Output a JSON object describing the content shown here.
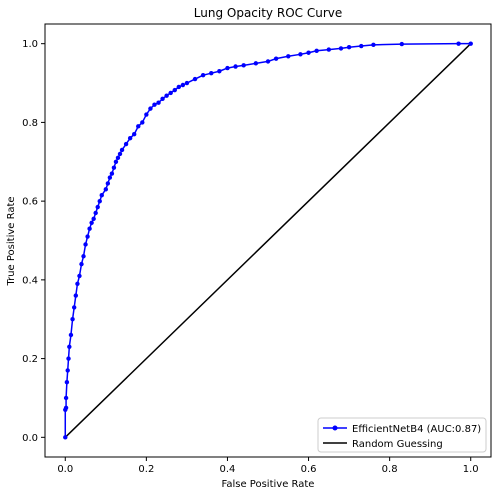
{
  "chart_data": {
    "type": "line",
    "title": "Lung Opacity ROC Curve",
    "xlabel": "False Positive Rate",
    "ylabel": "True Positive Rate",
    "xlim": [
      -0.05,
      1.05
    ],
    "ylim": [
      -0.05,
      1.05
    ],
    "xticks": [
      0.0,
      0.2,
      0.4,
      0.6,
      0.8,
      1.0
    ],
    "yticks": [
      0.0,
      0.2,
      0.4,
      0.6,
      0.8,
      1.0
    ],
    "xtick_labels": [
      "0.0",
      "0.2",
      "0.4",
      "0.6",
      "0.8",
      "1.0"
    ],
    "ytick_labels": [
      "0.0",
      "0.2",
      "0.4",
      "0.6",
      "0.8",
      "1.0"
    ],
    "grid": false,
    "legend_position": "lower-right",
    "series": [
      {
        "name": "EfficientNetB4 (AUC:0.87)",
        "color": "#0000ff",
        "marker": "dot",
        "x": [
          0.0,
          0.0,
          0.002,
          0.002,
          0.004,
          0.006,
          0.008,
          0.01,
          0.014,
          0.018,
          0.022,
          0.026,
          0.03,
          0.035,
          0.04,
          0.045,
          0.05,
          0.055,
          0.06,
          0.065,
          0.07,
          0.075,
          0.08,
          0.085,
          0.09,
          0.1,
          0.105,
          0.11,
          0.115,
          0.12,
          0.125,
          0.13,
          0.135,
          0.14,
          0.15,
          0.16,
          0.17,
          0.18,
          0.19,
          0.2,
          0.21,
          0.22,
          0.23,
          0.24,
          0.25,
          0.26,
          0.27,
          0.28,
          0.29,
          0.3,
          0.32,
          0.34,
          0.36,
          0.38,
          0.4,
          0.42,
          0.44,
          0.47,
          0.5,
          0.52,
          0.55,
          0.58,
          0.6,
          0.62,
          0.65,
          0.68,
          0.7,
          0.73,
          0.76,
          0.83,
          0.97,
          1.0
        ],
        "y": [
          0.0,
          0.07,
          0.075,
          0.1,
          0.14,
          0.17,
          0.2,
          0.23,
          0.26,
          0.3,
          0.33,
          0.36,
          0.39,
          0.41,
          0.44,
          0.46,
          0.49,
          0.51,
          0.53,
          0.545,
          0.555,
          0.57,
          0.585,
          0.6,
          0.615,
          0.63,
          0.645,
          0.66,
          0.67,
          0.685,
          0.7,
          0.71,
          0.72,
          0.73,
          0.745,
          0.76,
          0.77,
          0.79,
          0.8,
          0.82,
          0.835,
          0.845,
          0.85,
          0.86,
          0.868,
          0.875,
          0.882,
          0.89,
          0.895,
          0.9,
          0.91,
          0.92,
          0.925,
          0.93,
          0.938,
          0.942,
          0.945,
          0.95,
          0.955,
          0.962,
          0.968,
          0.973,
          0.977,
          0.982,
          0.985,
          0.988,
          0.991,
          0.994,
          0.997,
          0.999,
          1.0,
          1.0
        ]
      },
      {
        "name": "Random Guessing",
        "color": "#000000",
        "marker": "none",
        "x": [
          0.0,
          1.0
        ],
        "y": [
          0.0,
          1.0
        ]
      }
    ]
  }
}
